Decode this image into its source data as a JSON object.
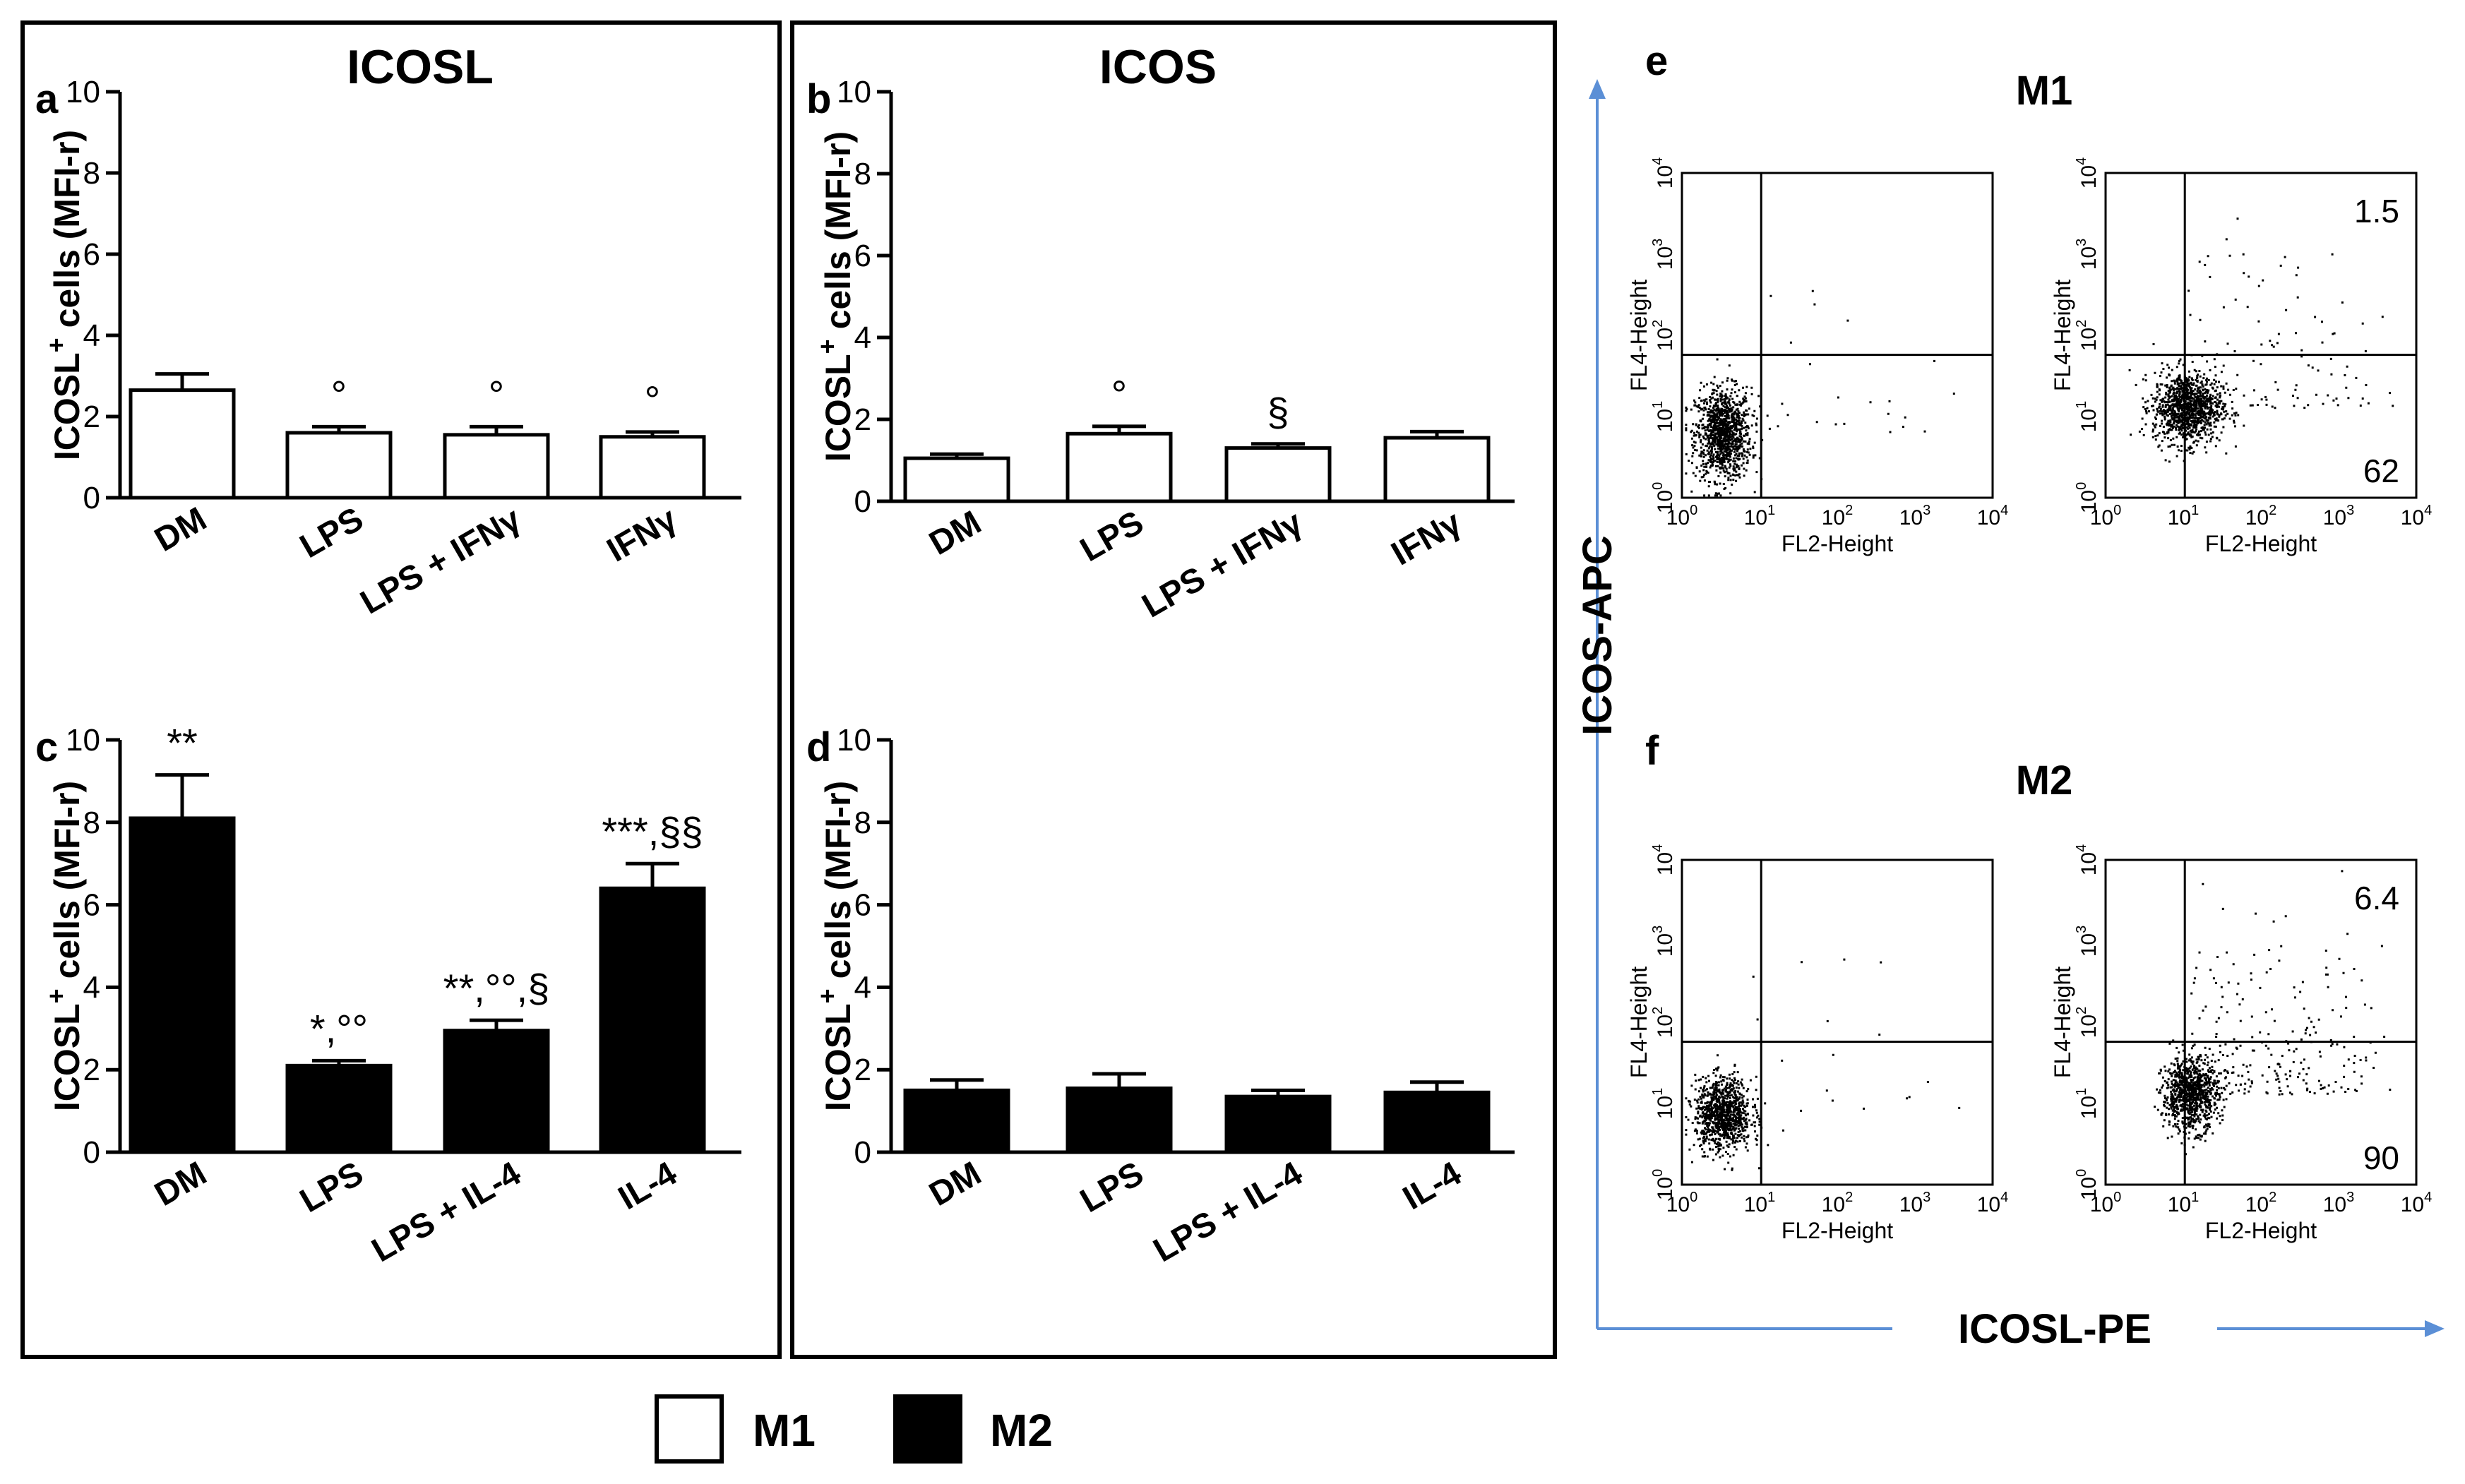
{
  "colors": {
    "m1_fill": "#ffffff",
    "m2_fill": "#000000",
    "axis_arrow": "#5b8fd6"
  },
  "panels": {
    "left_title": "ICOSL",
    "right_title": "ICOS"
  },
  "legend": [
    {
      "label": "M1",
      "fill": "#ffffff"
    },
    {
      "label": "M2",
      "fill": "#000000"
    }
  ],
  "chart_data": [
    {
      "id": "a",
      "type": "bar",
      "letter": "a",
      "ylabel": "ICOSL+ cells (MFI-r)",
      "ylabel_main": "ICOSL",
      "ylabel_sup": "+",
      "ylabel_rest": " cells (MFI-r)",
      "ylim": [
        0,
        10
      ],
      "yticks": [
        "0",
        "2",
        "4",
        "6",
        "8",
        "10"
      ],
      "categories": [
        "DM",
        "LPS",
        "LPS + IFNγ",
        "IFNγ"
      ],
      "values": [
        2.65,
        1.6,
        1.55,
        1.5
      ],
      "errors": [
        0.4,
        0.15,
        0.2,
        0.12
      ],
      "annotations": [
        "",
        "°",
        "°",
        "°"
      ],
      "series": "M1"
    },
    {
      "id": "b",
      "type": "bar",
      "letter": "b",
      "ylabel": "ICOSL+ cells (MFI-r)",
      "ylabel_main": "ICOSL",
      "ylabel_sup": "+",
      "ylabel_rest": " cells (MFI-r)",
      "ylim": [
        0,
        10
      ],
      "yticks": [
        "0",
        "2",
        "4",
        "6",
        "8",
        "10"
      ],
      "categories": [
        "DM",
        "LPS",
        "LPS + IFNγ",
        "IFNγ"
      ],
      "values": [
        1.05,
        1.65,
        1.3,
        1.55
      ],
      "errors": [
        0.1,
        0.18,
        0.1,
        0.15
      ],
      "annotations": [
        "",
        "°",
        "§",
        ""
      ],
      "series": "M1"
    },
    {
      "id": "c",
      "type": "bar",
      "letter": "c",
      "ylabel": "ICOSL+ cells (MFI-r)",
      "ylabel_main": "ICOSL",
      "ylabel_sup": "+",
      "ylabel_rest": " cells (MFI-r)",
      "ylim": [
        0,
        10
      ],
      "yticks": [
        "0",
        "2",
        "4",
        "6",
        "8",
        "10"
      ],
      "categories": [
        "DM",
        "LPS",
        "LPS + IL-4",
        "IL-4"
      ],
      "values": [
        8.1,
        2.1,
        2.95,
        6.4
      ],
      "errors": [
        1.05,
        0.12,
        0.25,
        0.6
      ],
      "annotations": [
        "**",
        "*,°°",
        "**,°°,§",
        "***,§§"
      ],
      "series": "M2"
    },
    {
      "id": "d",
      "type": "bar",
      "letter": "d",
      "ylabel": "ICOSL+ cells (MFI-r)",
      "ylabel_main": "ICOSL",
      "ylabel_sup": "+",
      "ylabel_rest": " cells (MFI-r)",
      "ylim": [
        0,
        10
      ],
      "yticks": [
        "0",
        "2",
        "4",
        "6",
        "8",
        "10"
      ],
      "categories": [
        "DM",
        "LPS",
        "LPS + IL-4",
        "IL-4"
      ],
      "values": [
        1.5,
        1.55,
        1.35,
        1.45
      ],
      "errors": [
        0.25,
        0.35,
        0.15,
        0.25
      ],
      "annotations": [
        "",
        "",
        "",
        ""
      ],
      "series": "M2"
    }
  ],
  "flow": {
    "x_axis_label": "ICOSL-PE",
    "y_axis_label": "ICOS-APC",
    "plot_xlabel": "FL2-Height",
    "plot_ylabel": "FL4-Height",
    "decade_labels": [
      "10",
      "10",
      "10",
      "10",
      "10"
    ],
    "decade_exponents": [
      "0",
      "1",
      "2",
      "3",
      "4"
    ],
    "rows": [
      {
        "letter": "e",
        "title": "M1",
        "upper_right": "",
        "lower_right": "",
        "upper_right_2": "1.5",
        "lower_right_2": "62"
      },
      {
        "letter": "f",
        "title": "M2",
        "upper_right": "",
        "lower_right": "",
        "upper_right_2": "6.4",
        "lower_right_2": "90"
      }
    ]
  }
}
